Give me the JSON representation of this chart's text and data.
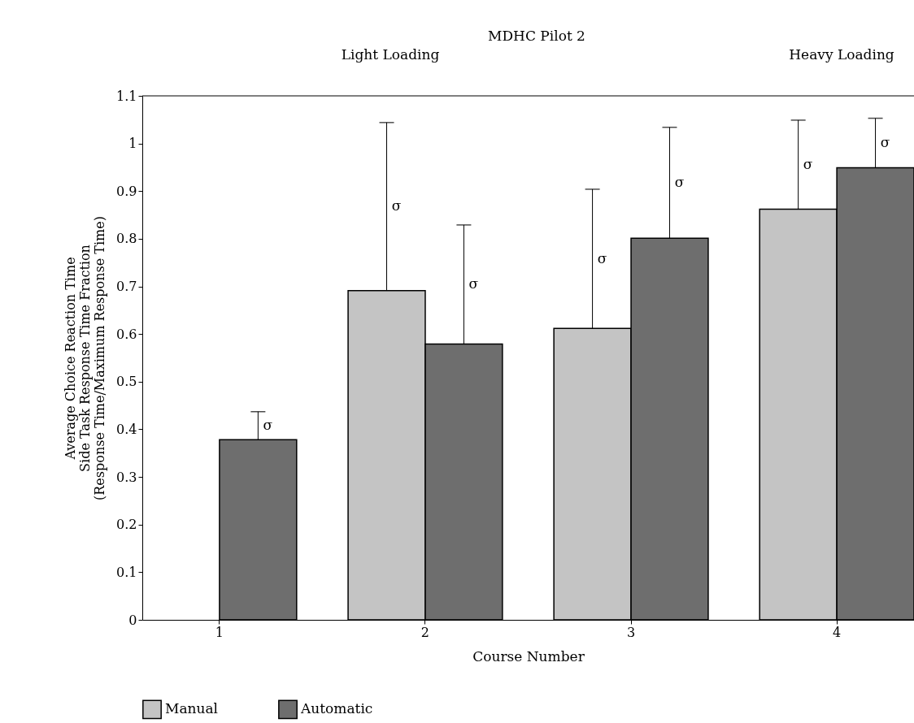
{
  "chart_data": {
    "type": "bar",
    "title": "MDHC Pilot 2",
    "xlabel": "Course Number",
    "ylabel": "Average Choice Reaction Time\nSide Task Response Time Fraction\n(Response Time/Maximum Response Time)",
    "categories": [
      "1",
      "2",
      "3",
      "4"
    ],
    "series": [
      {
        "name": "Manual",
        "color": "#c4c4c4",
        "values": [
          null,
          0.691,
          0.612,
          0.862
        ],
        "errors": [
          null,
          [
            0.691,
            1.044
          ],
          [
            0.612,
            0.904
          ],
          [
            0.862,
            1.049
          ]
        ]
      },
      {
        "name": "Automatic",
        "color": "#6e6e6e",
        "values": [
          0.378,
          0.579,
          0.801,
          0.949
        ],
        "errors": [
          [
            0.378,
            0.437
          ],
          [
            0.579,
            0.829
          ],
          [
            0.801,
            1.034
          ],
          [
            0.949,
            1.053
          ]
        ]
      }
    ],
    "ylim": [
      0,
      1.1
    ],
    "yticks": [
      0,
      0.1,
      0.2,
      0.3,
      0.4,
      0.5,
      0.6,
      0.7,
      0.8,
      0.9,
      1,
      1.1
    ],
    "ref_lines": [
      {
        "axis": "y",
        "value": 1.1
      }
    ],
    "annotations": [
      "Light Loading",
      "Heavy Loading",
      "σ",
      "σ",
      "σ",
      "σ",
      "σ",
      "σ",
      "σ"
    ],
    "grid": false,
    "legend": "bottom"
  }
}
